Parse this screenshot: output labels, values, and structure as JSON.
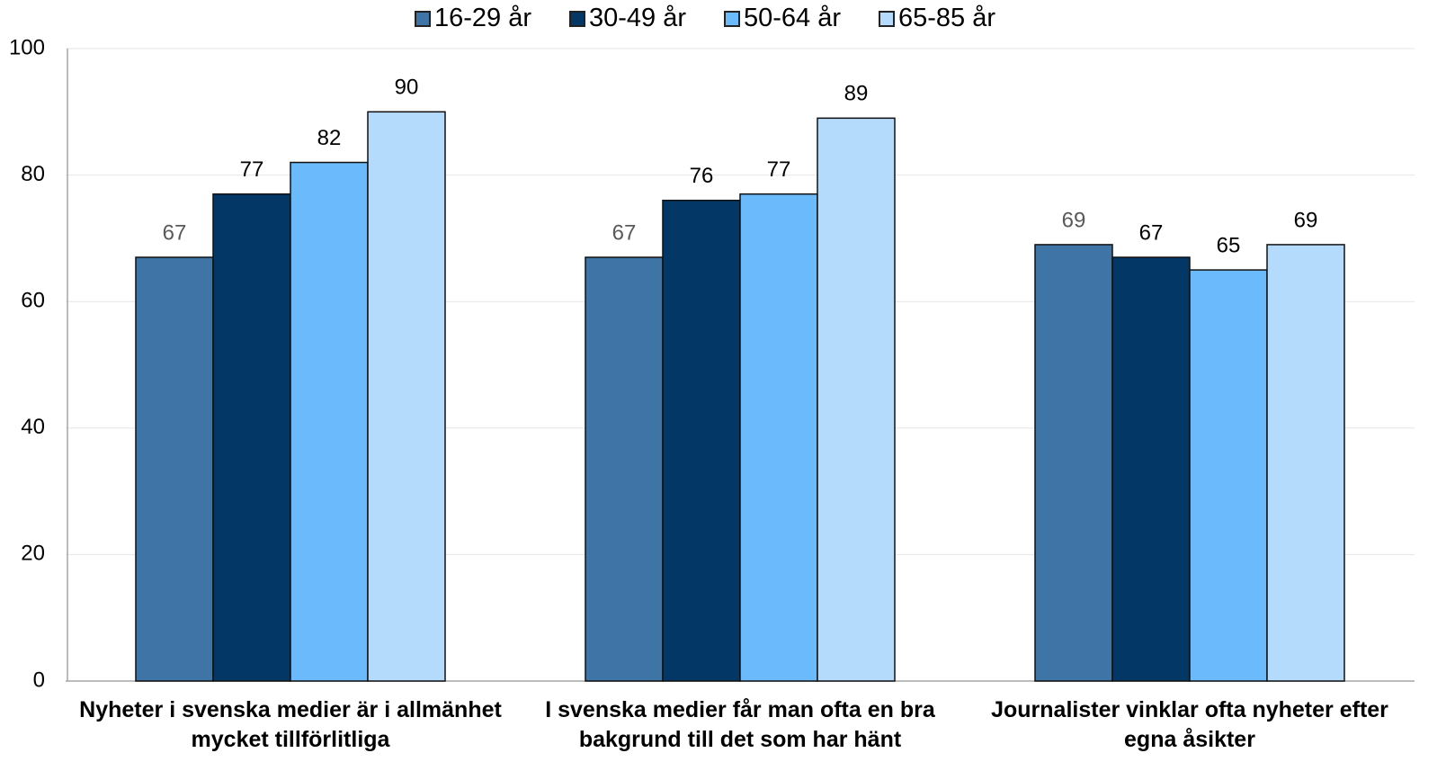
{
  "chart_data": {
    "type": "bar",
    "categories": [
      "Nyheter i svenska medier är i allmänhet mycket tillförlitliga",
      "I svenska medier får man ofta en bra bakgrund till det som har hänt",
      "Journalister vinklar ofta nyheter efter egna åsikter"
    ],
    "series": [
      {
        "name": "16-29 år",
        "color": "#3f74a6",
        "label_color": "#595959",
        "values": [
          67,
          67,
          69
        ]
      },
      {
        "name": "30-49 år",
        "color": "#033766",
        "label_color": "#000000",
        "values": [
          77,
          76,
          67
        ]
      },
      {
        "name": "50-64 år",
        "color": "#6bbbfc",
        "label_color": "#000000",
        "values": [
          82,
          77,
          65
        ]
      },
      {
        "name": "65-85 år",
        "color": "#b5dbfc",
        "label_color": "#000000",
        "values": [
          90,
          89,
          69
        ]
      }
    ],
    "ylim": [
      0,
      100
    ],
    "yticks": [
      0,
      20,
      40,
      60,
      80,
      100
    ],
    "grid": true,
    "legend": "top"
  }
}
